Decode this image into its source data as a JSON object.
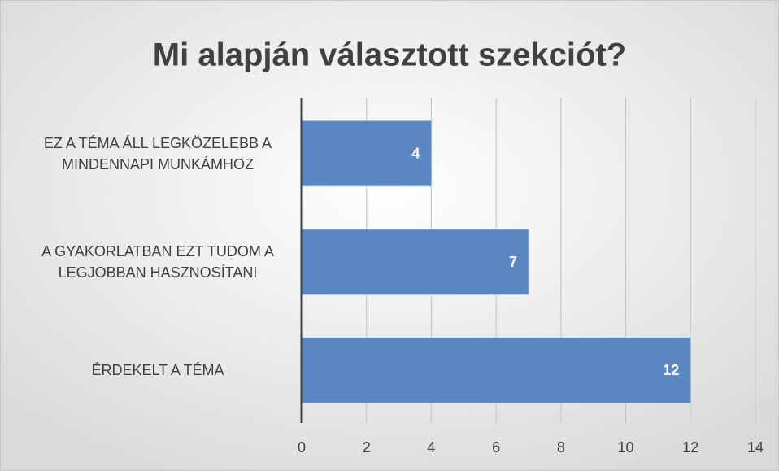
{
  "chart_data": {
    "type": "bar",
    "orientation": "horizontal",
    "title": "Mi alapján választott szekciót?",
    "categories": [
      "EZ A TÉMA ÁLL LEGKÖZELEBB A MINDENNAPI MUNKÁMHOZ",
      "A GYAKORLATBAN EZT TUDOM A LEGJOBBAN HASZNOSÍTANI",
      "ÉRDEKELT A TÉMA"
    ],
    "values": [
      4,
      7,
      12
    ],
    "color": "#5a86c4",
    "xlim": [
      0,
      14
    ],
    "xticks": [
      0,
      2,
      4,
      6,
      8,
      10,
      12,
      14
    ],
    "grid": true
  }
}
